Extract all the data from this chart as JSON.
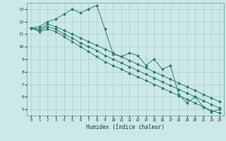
{
  "title": "",
  "xlabel": "Humidex (Indice chaleur)",
  "ylabel": "",
  "background_color": "#cce8e8",
  "grid_color": "#aacfcf",
  "line_color": "#2e7d6e",
  "xlim": [
    -0.5,
    23.5
  ],
  "ylim": [
    4.5,
    13.5
  ],
  "xticks": [
    0,
    1,
    2,
    3,
    4,
    5,
    6,
    7,
    8,
    9,
    10,
    11,
    12,
    13,
    14,
    15,
    16,
    17,
    18,
    19,
    20,
    21,
    22,
    23
  ],
  "yticks": [
    5,
    6,
    7,
    8,
    9,
    10,
    11,
    12,
    13
  ],
  "series_jagged": {
    "x": [
      0,
      1,
      2,
      3,
      4,
      5,
      6,
      7,
      8,
      9,
      10,
      11,
      12,
      13,
      14,
      15,
      16,
      17,
      18,
      19,
      20,
      21,
      22,
      23
    ],
    "y": [
      11.5,
      11.6,
      12.0,
      12.2,
      12.6,
      13.0,
      12.7,
      13.0,
      13.3,
      11.4,
      9.4,
      9.2,
      9.5,
      9.3,
      8.5,
      9.0,
      8.2,
      8.5,
      6.2,
      5.5,
      6.0,
      5.2,
      4.8,
      5.0
    ]
  },
  "series_linear1": {
    "x": [
      0,
      1,
      2,
      3,
      4,
      5,
      6,
      7,
      8,
      9,
      10,
      11,
      12,
      13,
      14,
      15,
      16,
      17,
      18,
      19,
      20,
      21,
      22,
      23
    ],
    "y": [
      11.5,
      11.4,
      11.8,
      11.6,
      11.3,
      11.0,
      10.7,
      10.4,
      10.1,
      9.8,
      9.5,
      9.2,
      8.9,
      8.6,
      8.3,
      8.0,
      7.7,
      7.4,
      7.1,
      6.8,
      6.5,
      6.2,
      5.9,
      5.6
    ]
  },
  "series_linear2": {
    "x": [
      0,
      1,
      2,
      3,
      4,
      5,
      6,
      7,
      8,
      9,
      10,
      11,
      12,
      13,
      14,
      15,
      16,
      17,
      18,
      19,
      20,
      21,
      22,
      23
    ],
    "y": [
      11.5,
      11.3,
      11.6,
      11.4,
      11.0,
      10.7,
      10.3,
      10.0,
      9.7,
      9.3,
      9.0,
      8.7,
      8.4,
      8.1,
      7.8,
      7.5,
      7.2,
      6.9,
      6.6,
      6.3,
      6.0,
      5.7,
      5.4,
      5.1
    ]
  },
  "series_linear3": {
    "x": [
      0,
      1,
      2,
      3,
      4,
      5,
      6,
      7,
      8,
      9,
      10,
      11,
      12,
      13,
      14,
      15,
      16,
      17,
      18,
      19,
      20,
      21,
      22,
      23
    ],
    "y": [
      11.5,
      11.2,
      11.4,
      11.2,
      10.8,
      10.4,
      10.0,
      9.6,
      9.2,
      8.8,
      8.5,
      8.2,
      7.9,
      7.6,
      7.3,
      7.0,
      6.7,
      6.4,
      6.1,
      5.8,
      5.5,
      5.2,
      4.9,
      4.7
    ]
  }
}
